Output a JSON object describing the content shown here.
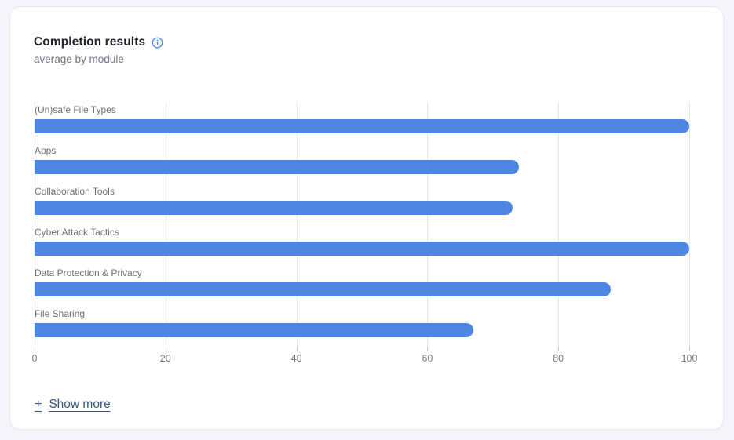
{
  "card": {
    "title": "Completion results",
    "subtitle": "average by module",
    "show_more": {
      "plus": "+",
      "label": "Show more"
    }
  },
  "icons": {
    "info_icon": "info-icon"
  },
  "colors": {
    "bar_blue": "#4d87e3",
    "info_icon_blue": "#4285f4",
    "link_blue": "#35577d",
    "page_background": "#f4f6f9",
    "card_background": "#ffffff",
    "gridline": "#e6e8eb"
  },
  "chart_data": {
    "type": "bar",
    "orientation": "horizontal",
    "title": "Completion results",
    "subtitle": "average by module",
    "categories": [
      "(Un)safe File Types",
      "Apps",
      "Collaboration Tools",
      "Cyber Attack Tactics",
      "Data Protection & Privacy",
      "File Sharing"
    ],
    "values": [
      100,
      74,
      73,
      100,
      88,
      67
    ],
    "xlabel": "",
    "ylabel": "",
    "xlim": [
      0,
      100
    ],
    "x_ticks": [
      0,
      20,
      40,
      60,
      80,
      100
    ],
    "grid": true,
    "legend": false,
    "bar_color": "#4d87e3"
  }
}
